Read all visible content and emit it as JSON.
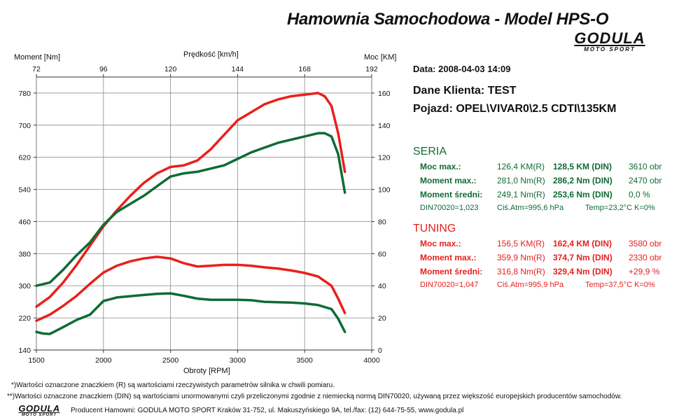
{
  "header": {
    "title": "Hamownia Samochodowa   -   Model HPS-O",
    "logo_text": "GODULA",
    "logo_subtext": "MOTO SPORT"
  },
  "axes": {
    "left_caption": "Moment [Nm]",
    "top_caption": "Prędkość [km/h]",
    "right_caption": "Moc [KM]",
    "bottom_caption": "Obroty [RPM]"
  },
  "info": {
    "date_label": "Data: 2008-04-03  14:09",
    "client_label": "Dane Klienta: TEST",
    "vehicle_label": "Pojazd: OPEL\\VIVAR0\\2.5 CDTI\\135KM"
  },
  "seria": {
    "title": "SERIA",
    "color": "#0f6b35",
    "rows": [
      {
        "label": "Moc max.:",
        "real": "126,4 KM(R)",
        "din": "128,5 KM (DIN)",
        "rpm": "3610 obr"
      },
      {
        "label": "Moment max.:",
        "real": "281,0 Nm(R)",
        "din": "286,2 Nm (DIN)",
        "rpm": "2470 obr"
      },
      {
        "label": "Moment średni:",
        "real": "249,1 Nm(R)",
        "din": "253,6 Nm (DIN)",
        "rpm": "0,0 %"
      }
    ],
    "din_line": {
      "din": "DIN70020=1,023",
      "atm": "Ciś.Atm=995,6 hPa",
      "temp": "Temp=23,2°C  K=0%"
    }
  },
  "tuning": {
    "title": "TUNING",
    "color": "#e8201c",
    "rows": [
      {
        "label": "Moc max.:",
        "real": "156,5 KM(R)",
        "din": "162,4 KM (DIN)",
        "rpm": "3580 obr"
      },
      {
        "label": "Moment max.:",
        "real": "359,9 Nm(R)",
        "din": "374,7 Nm (DIN)",
        "rpm": "2330 obr"
      },
      {
        "label": "Moment średni:",
        "real": "316,8 Nm(R)",
        "din": "329,4 Nm (DIN)",
        "rpm": "+29,9 %"
      }
    ],
    "din_line": {
      "din": "DIN70020=1,047",
      "atm": "Ciś.Atm=995,9 hPa",
      "temp": "Temp=37,5°C  K=0%"
    }
  },
  "footer": {
    "note1": "*)Wartości oznaczone znaczkiem (R) są wartościami rzeczywistych parametrów silnika w chwili pomiaru.",
    "note2": "**)Wartości oznaczone znaczkiem (DIN) są wartościami unormowanymi czyli przeliczonymi zgodnie z niemiecką normą DIN70020, używaną przez większość europejskich producentów samochodów.",
    "producer": "Producent Hamowni: GODULA MOTO SPORT Kraków 31-752, ul. Makuszyńskiego 9A, tel./fax: (12) 644-75-55, www.godula.pl"
  },
  "chart_data": {
    "type": "line",
    "xlabel": "Obroty [RPM]",
    "ylabel": "Moment [Nm]",
    "y2label": "Moc [KM]",
    "top_label": "Prędkość [km/h]",
    "xlim": [
      1500,
      4000
    ],
    "ylim": [
      140,
      820
    ],
    "y2lim": [
      0,
      170
    ],
    "toplim": [
      72,
      192
    ],
    "x_ticks": [
      1500,
      2000,
      2500,
      3000,
      3500,
      4000
    ],
    "y_ticks": [
      140,
      220,
      300,
      380,
      460,
      540,
      620,
      700,
      780
    ],
    "y2_ticks": [
      0,
      20,
      40,
      60,
      80,
      100,
      120,
      140,
      160
    ],
    "top_ticks": [
      72,
      96,
      120,
      144,
      168,
      192
    ],
    "grid": true,
    "series": [
      {
        "name": "TUNING",
        "quantity": "power",
        "axis": "right",
        "color": "#e8201c",
        "x": [
          1500,
          1600,
          1700,
          1800,
          1900,
          2000,
          2100,
          2200,
          2300,
          2400,
          2500,
          2600,
          2700,
          2800,
          2900,
          3000,
          3100,
          3200,
          3300,
          3400,
          3500,
          3600,
          3650,
          3700,
          3750,
          3800
        ],
        "y": [
          27,
          33,
          42,
          53,
          65,
          77,
          87,
          96,
          104,
          110,
          114,
          115,
          118,
          125,
          134,
          143,
          148,
          153,
          156,
          158,
          159,
          160,
          158,
          152,
          135,
          111
        ]
      },
      {
        "name": "SERIA",
        "quantity": "power",
        "axis": "right",
        "color": "#0f6b35",
        "x": [
          1500,
          1600,
          1700,
          1800,
          1900,
          2000,
          2100,
          2200,
          2300,
          2400,
          2500,
          2600,
          2700,
          2800,
          2900,
          3000,
          3100,
          3200,
          3300,
          3400,
          3500,
          3600,
          3650,
          3700,
          3750,
          3800
        ],
        "y": [
          40,
          42,
          50,
          59,
          67,
          78,
          86,
          91,
          96,
          102,
          108,
          110,
          111,
          113,
          115,
          119,
          123,
          126,
          129,
          131,
          133,
          135,
          135,
          133,
          122,
          98
        ]
      },
      {
        "name": "TUNING",
        "quantity": "torque",
        "axis": "left",
        "color": "#e8201c",
        "x": [
          1500,
          1600,
          1700,
          1800,
          1900,
          2000,
          2100,
          2200,
          2300,
          2400,
          2500,
          2600,
          2700,
          2800,
          2900,
          3000,
          3100,
          3200,
          3300,
          3400,
          3500,
          3600,
          3700,
          3750,
          3800
        ],
        "y": [
          213,
          228,
          250,
          275,
          305,
          333,
          350,
          361,
          368,
          372,
          368,
          356,
          348,
          350,
          352,
          352,
          350,
          346,
          343,
          338,
          332,
          323,
          300,
          268,
          232
        ]
      },
      {
        "name": "SERIA",
        "quantity": "torque",
        "axis": "left",
        "color": "#0f6b35",
        "x": [
          1500,
          1550,
          1600,
          1700,
          1800,
          1900,
          2000,
          2100,
          2200,
          2300,
          2400,
          2500,
          2600,
          2700,
          2800,
          2900,
          3000,
          3100,
          3200,
          3300,
          3400,
          3500,
          3600,
          3700,
          3750,
          3800
        ],
        "y": [
          185,
          181,
          180,
          197,
          215,
          228,
          262,
          271,
          274,
          277,
          280,
          281,
          275,
          268,
          265,
          265,
          265,
          264,
          260,
          259,
          258,
          256,
          252,
          242,
          218,
          185
        ]
      }
    ]
  }
}
